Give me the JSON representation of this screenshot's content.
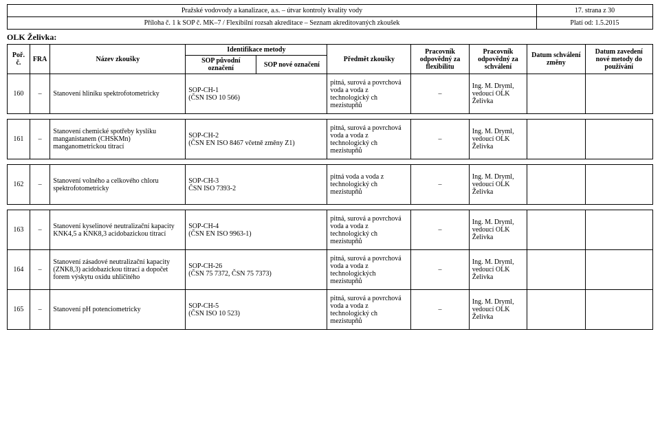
{
  "header": {
    "org": "Pražské vodovody a kanalizace, a.s. – útvar kontroly kvality vody",
    "page": "17. strana z 30",
    "attachment": "Příloha č. 1 k SOP č. MK–7 / Flexibilní rozsah akreditace – Seznam akreditovaných zkoušek",
    "valid": "Platí od: 1.5.2015"
  },
  "section": "OLK Želivka:",
  "cols": {
    "por": "Poř. č.",
    "fra": "FRA",
    "nazev": "Název zkoušky",
    "ident": "Identifikace metody",
    "sop_puv": "SOP původní označení",
    "sop_nov": "SOP nové označení",
    "predmet": "Předmět zkoušky",
    "prac_flex": "Pracovník odpovědný za flexibilitu",
    "prac_schv": "Pracovník odpovědný za schválení",
    "datum": "Datum schválení změny",
    "zav": "Datum zavedení nové metody do používání"
  },
  "rows": [
    {
      "por": "160",
      "fra": "–",
      "nazev": "Stanovení hliníku spektrofotometricky",
      "sop": "SOP-CH-1\n(ČSN ISO 10 566)",
      "predmet": "pitná, surová a povrchová voda a voda z technologický ch mezistupňů",
      "flex": "–",
      "schv": "Ing. M. Dryml, vedoucí OLK Želivka"
    },
    {
      "por": "161",
      "fra": "–",
      "nazev": "Stanovení chemické spotřeby kyslíku manganistanem (CHSKMn) manganometrickou titrací",
      "sop": "SOP-CH-2\n(ČSN EN ISO 8467 včetně změny Z1)",
      "predmet": "pitná, surová a povrchová voda a voda z technologický ch mezistupňů",
      "flex": "–",
      "schv": "Ing. M. Dryml, vedoucí OLK Želivka"
    },
    {
      "por": "162",
      "fra": "–",
      "nazev": "Stanovení volného a celkového chloru spektrofotometricky",
      "sop": "SOP-CH-3\nČSN ISO 7393-2",
      "predmet": "pitná voda a voda z technologický ch mezistupňů",
      "flex": "–",
      "schv": "Ing. M. Dryml, vedoucí OLK Želivka"
    },
    {
      "por": "163",
      "fra": "–",
      "nazev": "Stanovení kyselinové neutralizační kapacity KNK4,5 a KNK8,3 acidobazickou titrací",
      "sop": "SOP-CH-4\n(ČSN EN ISO 9963-1)",
      "predmet": "pitná, surová a povrchová voda a voda z technologický ch mezistupňů",
      "flex": "–",
      "schv": "Ing. M. Dryml, vedoucí OLK Želivka"
    },
    {
      "por": "164",
      "fra": "–",
      "nazev": "Stanovení zásadové neutralizační kapacity (ZNK8,3) acidobazickou titrací a dopočet forem výskytu oxidu uhličitého",
      "sop": "SOP-CH-26\n(ČSN 75 7372, ČSN 75 7373)",
      "predmet": "pitná, surová a povrchová voda a voda z technologických mezistupňů",
      "flex": "–",
      "schv": "Ing. M. Dryml, vedoucí OLK Želivka"
    },
    {
      "por": "165",
      "fra": "–",
      "nazev": "Stanovení pH potenciometricky",
      "sop": "SOP-CH-5\n(ČSN ISO 10 523)",
      "predmet": "pitná, surová a povrchová voda a voda z technologický ch mezistupňů",
      "flex": "–",
      "schv": "Ing. M. Dryml, vedoucí OLK Želivka"
    }
  ]
}
